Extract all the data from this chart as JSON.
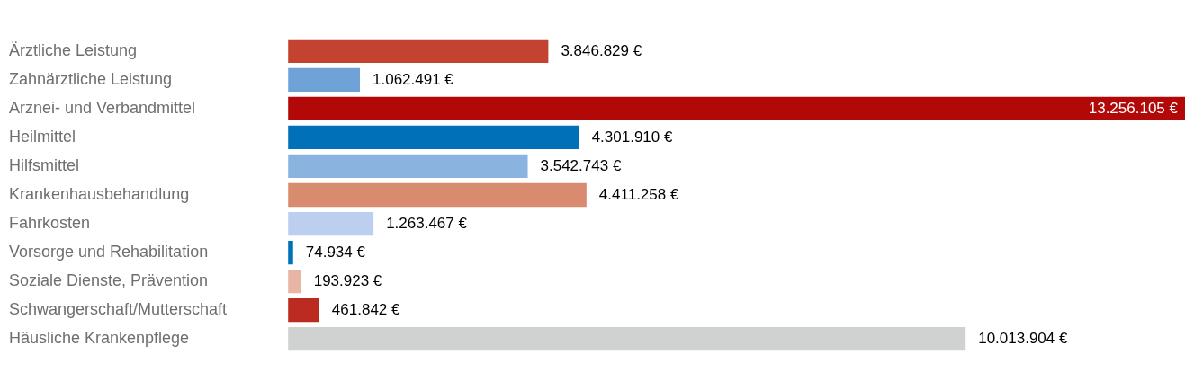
{
  "chart_data": {
    "type": "bar",
    "orientation": "horizontal",
    "tick_labels": "y",
    "grid": false,
    "legend": false,
    "categories": [
      "Ärztliche Leistung",
      "Zahnärztliche Leistung",
      "Arznei- und Verbandmittel",
      "Heilmittel",
      "Hilfsmittel",
      "Krankenhausbehandlung",
      "Fahrkosten",
      "Vorsorge und Rehabilitation",
      "Soziale Dienste, Prävention",
      "Schwangerschaft/Mutterschaft",
      "Häusliche Krankenpflege"
    ],
    "values": [
      3846829,
      1062491,
      13256105,
      4301910,
      3542743,
      4411258,
      1263467,
      74934,
      193923,
      461842,
      10013904
    ],
    "value_labels": [
      "3.846.829 €",
      "1.062.491 €",
      "13.256.105 €",
      "4.301.910 €",
      "3.542.743 €",
      "4.411.258 €",
      "1.263.467 €",
      "74.934 €",
      "193.923 €",
      "461.842 €",
      "10.013.904 €"
    ],
    "colors": [
      "#c44230",
      "#6fa3d8",
      "#b30808",
      "#0070b8",
      "#8ab3e0",
      "#d98b70",
      "#bccfee",
      "#0070b8",
      "#e8b5a5",
      "#bc2b20",
      "#d0d2d1"
    ]
  }
}
